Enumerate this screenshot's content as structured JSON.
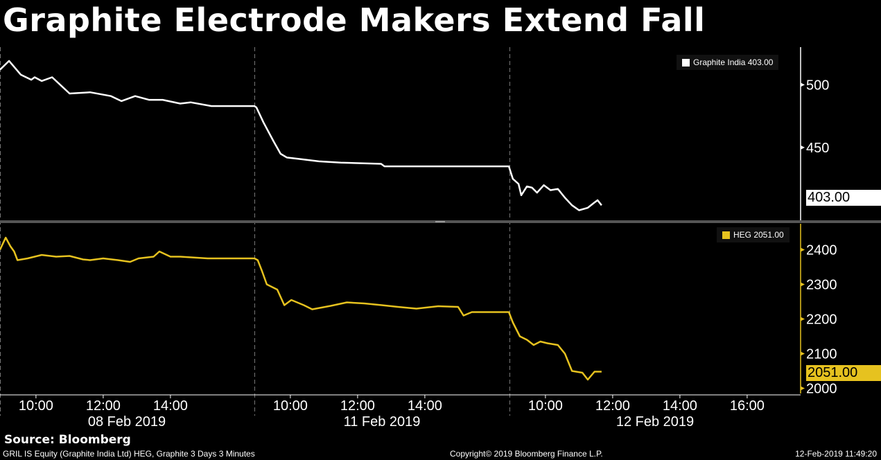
{
  "chart_data": [
    {
      "type": "line",
      "title": "Graphite Electrode Makers Extend Fall",
      "legend": "Graphite India 403.00",
      "series_name": "Graphite India",
      "last_value_label": "403.00",
      "color": "#ffffff",
      "y_ticks": [
        450,
        500
      ],
      "y_tick_labels": [
        "450",
        "500"
      ],
      "ylim": [
        392,
        530
      ],
      "session_hours": [
        8.93,
        16.5
      ],
      "points": [
        [
          0,
          8.93,
          512
        ],
        [
          0,
          9.2,
          519
        ],
        [
          0,
          9.55,
          508
        ],
        [
          0,
          9.86,
          504
        ],
        [
          0,
          9.96,
          506
        ],
        [
          0,
          10.17,
          503
        ],
        [
          0,
          10.48,
          506
        ],
        [
          0,
          11.0,
          493
        ],
        [
          0,
          11.61,
          494
        ],
        [
          0,
          12.23,
          491
        ],
        [
          0,
          12.54,
          487
        ],
        [
          0,
          12.95,
          491
        ],
        [
          0,
          13.36,
          488
        ],
        [
          0,
          13.77,
          488
        ],
        [
          0,
          14.29,
          485
        ],
        [
          0,
          14.6,
          486
        ],
        [
          0,
          15.22,
          483
        ],
        [
          0,
          16.5,
          483
        ],
        [
          1,
          8.99,
          482
        ],
        [
          1,
          9.2,
          470
        ],
        [
          1,
          9.5,
          455
        ],
        [
          1,
          9.71,
          445
        ],
        [
          1,
          9.9,
          442
        ],
        [
          1,
          10.23,
          441
        ],
        [
          1,
          10.85,
          439
        ],
        [
          1,
          11.5,
          438
        ],
        [
          1,
          12.7,
          437
        ],
        [
          1,
          12.8,
          435
        ],
        [
          1,
          16.5,
          435
        ],
        [
          2,
          9.03,
          425
        ],
        [
          2,
          9.2,
          421
        ],
        [
          2,
          9.28,
          412
        ],
        [
          2,
          9.45,
          419
        ],
        [
          2,
          9.6,
          418
        ],
        [
          2,
          9.75,
          414
        ],
        [
          2,
          9.95,
          420
        ],
        [
          2,
          10.15,
          416
        ],
        [
          2,
          10.37,
          417
        ],
        [
          2,
          10.58,
          410
        ],
        [
          2,
          10.79,
          404
        ],
        [
          2,
          11.0,
          400
        ],
        [
          2,
          11.26,
          402
        ],
        [
          2,
          11.45,
          406
        ],
        [
          2,
          11.55,
          408
        ],
        [
          2,
          11.67,
          404
        ]
      ]
    },
    {
      "type": "line",
      "legend": "HEG 2051.00",
      "series_name": "HEG",
      "last_value_label": "2051.00",
      "color": "#e6c21f",
      "y_ticks": [
        2000,
        2100,
        2200,
        2300,
        2400
      ],
      "y_tick_labels": [
        "2000",
        "2100",
        "2200",
        "2300",
        "2400"
      ],
      "ylim": [
        1985,
        2475
      ],
      "session_hours": [
        8.93,
        16.5
      ],
      "points": [
        [
          0,
          8.93,
          2400
        ],
        [
          0,
          9.1,
          2435
        ],
        [
          0,
          9.24,
          2410
        ],
        [
          0,
          9.35,
          2395
        ],
        [
          0,
          9.45,
          2370
        ],
        [
          0,
          9.75,
          2375
        ],
        [
          0,
          10.17,
          2385
        ],
        [
          0,
          10.6,
          2380
        ],
        [
          0,
          11.0,
          2382
        ],
        [
          0,
          11.4,
          2372
        ],
        [
          0,
          11.61,
          2370
        ],
        [
          0,
          12.0,
          2375
        ],
        [
          0,
          12.44,
          2370
        ],
        [
          0,
          12.8,
          2365
        ],
        [
          0,
          13.05,
          2375
        ],
        [
          0,
          13.5,
          2380
        ],
        [
          0,
          13.67,
          2395
        ],
        [
          0,
          14.0,
          2380
        ],
        [
          0,
          14.29,
          2380
        ],
        [
          0,
          15.11,
          2375
        ],
        [
          0,
          16.5,
          2375
        ],
        [
          1,
          9.03,
          2370
        ],
        [
          1,
          9.15,
          2340
        ],
        [
          1,
          9.3,
          2300
        ],
        [
          1,
          9.61,
          2285
        ],
        [
          1,
          9.82,
          2240
        ],
        [
          1,
          10.03,
          2255
        ],
        [
          1,
          10.4,
          2240
        ],
        [
          1,
          10.65,
          2228
        ],
        [
          1,
          11.2,
          2238
        ],
        [
          1,
          11.68,
          2248
        ],
        [
          1,
          12.2,
          2245
        ],
        [
          1,
          12.72,
          2240
        ],
        [
          1,
          13.2,
          2235
        ],
        [
          1,
          13.75,
          2230
        ],
        [
          1,
          14.4,
          2237
        ],
        [
          1,
          14.99,
          2235
        ],
        [
          1,
          15.15,
          2210
        ],
        [
          1,
          15.4,
          2220
        ],
        [
          1,
          16.5,
          2220
        ],
        [
          2,
          9.03,
          2190
        ],
        [
          2,
          9.24,
          2150
        ],
        [
          2,
          9.45,
          2140
        ],
        [
          2,
          9.65,
          2125
        ],
        [
          2,
          9.85,
          2135
        ],
        [
          2,
          10.06,
          2130
        ],
        [
          2,
          10.37,
          2125
        ],
        [
          2,
          10.58,
          2100
        ],
        [
          2,
          10.79,
          2050
        ],
        [
          2,
          11.1,
          2045
        ],
        [
          2,
          11.26,
          2025
        ],
        [
          2,
          11.46,
          2048
        ],
        [
          2,
          11.67,
          2048
        ]
      ]
    }
  ],
  "x_axis": {
    "time_ticks": [
      {
        "day": 0,
        "hour": 10,
        "label": "10:00"
      },
      {
        "day": 0,
        "hour": 12,
        "label": "12:00"
      },
      {
        "day": 0,
        "hour": 14,
        "label": "14:00"
      },
      {
        "day": 1,
        "hour": 10,
        "label": "10:00"
      },
      {
        "day": 1,
        "hour": 12,
        "label": "12:00"
      },
      {
        "day": 1,
        "hour": 14,
        "label": "14:00"
      },
      {
        "day": 2,
        "hour": 10,
        "label": "10:00"
      },
      {
        "day": 2,
        "hour": 12,
        "label": "12:00"
      },
      {
        "day": 2,
        "hour": 14,
        "label": "14:00"
      },
      {
        "day": 2,
        "hour": 16,
        "label": "16:00"
      }
    ],
    "date_labels": [
      "08 Feb 2019",
      "11 Feb 2019",
      "12 Feb 2019"
    ]
  },
  "footer": {
    "source": "Source: Bloomberg",
    "description": "GRIL IS Equity (Graphite India Ltd) HEG, Graphite 3 Days 3 Minutes",
    "copyright": "Copyright© 2019 Bloomberg Finance L.P.",
    "timestamp": "12-Feb-2019 11:49:20"
  }
}
